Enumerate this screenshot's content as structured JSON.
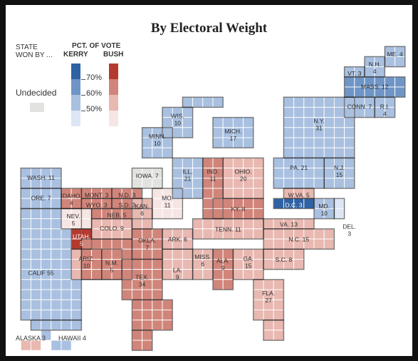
{
  "title": "By Electoral Weight",
  "legend": {
    "state_won_by": "STATE\nWON BY …",
    "pct_of_vote": "PCT. OF VOTE",
    "kerry": "KERRY",
    "bush": "BUSH",
    "ticks": [
      "70%",
      "60%",
      "50%"
    ],
    "undecided": "Undecided"
  },
  "colors": {
    "kerry": [
      "#2f62a3",
      "#6f95c6",
      "#a9c0e0",
      "#dde6f4"
    ],
    "bush": [
      "#b53a2e",
      "#d1857a",
      "#e8b8b1",
      "#f6e6e3"
    ],
    "undecided": "#e2e2df"
  },
  "footer": {
    "alaska": "ALASKA 3",
    "hawaii": "HAWAII 4"
  },
  "states": [
    {
      "abbr": "WASH",
      "votes": 11,
      "winner": "kerry",
      "shade": 2
    },
    {
      "abbr": "ORE",
      "votes": 7,
      "winner": "kerry",
      "shade": 2
    },
    {
      "abbr": "CALIF",
      "votes": 55,
      "winner": "kerry",
      "shade": 2
    },
    {
      "abbr": "IDAHO",
      "votes": 4,
      "winner": "bush",
      "shade": 1
    },
    {
      "abbr": "NEV",
      "votes": 5,
      "winner": "bush",
      "shade": 3
    },
    {
      "abbr": "UTAH",
      "votes": 5,
      "winner": "bush",
      "shade": 0
    },
    {
      "abbr": "ARIZ",
      "votes": 10,
      "winner": "bush",
      "shade": 2
    },
    {
      "abbr": "MONT",
      "votes": 3,
      "winner": "bush",
      "shade": 1
    },
    {
      "abbr": "WYO",
      "votes": 3,
      "winner": "bush",
      "shade": 1
    },
    {
      "abbr": "COLO",
      "votes": 9,
      "winner": "bush",
      "shade": 2
    },
    {
      "abbr": "N.M",
      "votes": 5,
      "winner": "undecided",
      "shade": 0
    },
    {
      "abbr": "N.D",
      "votes": 3,
      "winner": "bush",
      "shade": 1
    },
    {
      "abbr": "S.D",
      "votes": 3,
      "winner": "bush",
      "shade": 1
    },
    {
      "abbr": "NEB",
      "votes": 5,
      "winner": "bush",
      "shade": 1
    },
    {
      "abbr": "KAN",
      "votes": 6,
      "winner": "bush",
      "shade": 2
    },
    {
      "abbr": "OKLA",
      "votes": 7,
      "winner": "bush",
      "shade": 1
    },
    {
      "abbr": "TEX",
      "votes": 34,
      "winner": "bush",
      "shade": 1
    },
    {
      "abbr": "MINN",
      "votes": 10,
      "winner": "kerry",
      "shade": 2
    },
    {
      "abbr": "IOWA",
      "votes": 7,
      "winner": "undecided",
      "shade": 0
    },
    {
      "abbr": "MO",
      "votes": 11,
      "winner": "bush",
      "shade": 3
    },
    {
      "abbr": "ARK",
      "votes": 6,
      "winner": "bush",
      "shade": 2
    },
    {
      "abbr": "LA",
      "votes": 9,
      "winner": "bush",
      "shade": 2
    },
    {
      "abbr": "WIS",
      "votes": 10,
      "winner": "kerry",
      "shade": 2
    },
    {
      "abbr": "ILL",
      "votes": 21,
      "winner": "kerry",
      "shade": 2
    },
    {
      "abbr": "MICH",
      "votes": 17,
      "winner": "kerry",
      "shade": 2
    },
    {
      "abbr": "IND",
      "votes": 11,
      "winner": "bush",
      "shade": 1
    },
    {
      "abbr": "OHIO",
      "votes": 20,
      "winner": "bush",
      "shade": 2
    },
    {
      "abbr": "KY",
      "votes": 8,
      "winner": "bush",
      "shade": 1
    },
    {
      "abbr": "TENN",
      "votes": 11,
      "winner": "bush",
      "shade": 2
    },
    {
      "abbr": "MISS",
      "votes": 6,
      "winner": "bush",
      "shade": 2
    },
    {
      "abbr": "ALA",
      "votes": 9,
      "winner": "bush",
      "shade": 1
    },
    {
      "abbr": "GA",
      "votes": 15,
      "winner": "bush",
      "shade": 2
    },
    {
      "abbr": "FLA",
      "votes": 27,
      "winner": "bush",
      "shade": 2
    },
    {
      "abbr": "S.C",
      "votes": 8,
      "winner": "bush",
      "shade": 2
    },
    {
      "abbr": "N.C",
      "votes": 15,
      "winner": "bush",
      "shade": 2
    },
    {
      "abbr": "VA",
      "votes": 13,
      "winner": "bush",
      "shade": 2
    },
    {
      "abbr": "W.VA",
      "votes": 5,
      "winner": "bush",
      "shade": 2
    },
    {
      "abbr": "PA",
      "votes": 21,
      "winner": "kerry",
      "shade": 2
    },
    {
      "abbr": "N.Y",
      "votes": 31,
      "winner": "kerry",
      "shade": 2
    },
    {
      "abbr": "N.J",
      "votes": 15,
      "winner": "kerry",
      "shade": 2
    },
    {
      "abbr": "MD",
      "votes": 10,
      "winner": "kerry",
      "shade": 2
    },
    {
      "abbr": "D.C",
      "votes": 3,
      "winner": "kerry",
      "shade": 0
    },
    {
      "abbr": "DEL",
      "votes": 3,
      "winner": "kerry",
      "shade": 3
    },
    {
      "abbr": "CONN",
      "votes": 7,
      "winner": "kerry",
      "shade": 2
    },
    {
      "abbr": "R.I",
      "votes": 4,
      "winner": "kerry",
      "shade": 2
    },
    {
      "abbr": "MASS",
      "votes": 12,
      "winner": "kerry",
      "shade": 1
    },
    {
      "abbr": "VT",
      "votes": 3,
      "winner": "kerry",
      "shade": 2
    },
    {
      "abbr": "N.H",
      "votes": 4,
      "winner": "kerry",
      "shade": 2
    },
    {
      "abbr": "ME",
      "votes": 4,
      "winner": "kerry",
      "shade": 2
    },
    {
      "abbr": "ALASKA",
      "votes": 3,
      "winner": "bush",
      "shade": 2
    },
    {
      "abbr": "HAWAII",
      "votes": 4,
      "winner": "kerry",
      "shade": 2
    }
  ]
}
